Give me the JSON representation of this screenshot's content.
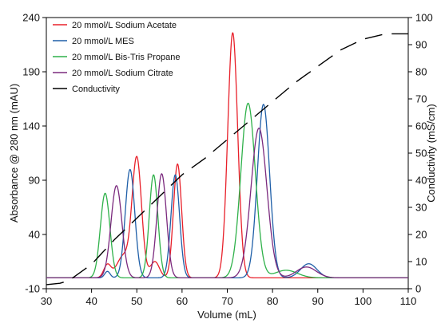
{
  "chart_data": {
    "type": "line",
    "xlabel": "Volume (mL)",
    "ylabel_left": "Absorbance @ 280 nm (mAU)",
    "ylabel_right": "Conductivity (mS/cm)",
    "xlim": [
      30,
      110
    ],
    "ylim_left": [
      -10,
      240
    ],
    "ylim_right": [
      0,
      100
    ],
    "x_ticks": [
      "30",
      "40",
      "50",
      "60",
      "70",
      "80",
      "90",
      "100",
      "110"
    ],
    "y_left_ticks": [
      "-10",
      "40",
      "90",
      "140",
      "190",
      "240"
    ],
    "y_right_ticks": [
      "0",
      "10",
      "20",
      "30",
      "40",
      "50",
      "60",
      "70",
      "80",
      "90",
      "100"
    ],
    "grid": false,
    "legend_position": "top-left",
    "series": [
      {
        "name": "20 mmol/L Sodium Acetate",
        "color": "#e8202a",
        "axis": "left",
        "baseline": 0,
        "peaks": [
          [
            43.5,
            12,
            0.8
          ],
          [
            47,
            20,
            1.4
          ],
          [
            50,
            110,
            1.05
          ],
          [
            54,
            15,
            1.0
          ],
          [
            59,
            105,
            0.9
          ],
          [
            71.2,
            226,
            1.1
          ]
        ]
      },
      {
        "name": "20 mmol/L MES",
        "color": "#1f5fa8",
        "axis": "left",
        "baseline": 0,
        "peaks": [
          [
            43.5,
            6,
            0.6
          ],
          [
            48.5,
            100,
            1.05
          ],
          [
            58.5,
            95,
            0.95
          ],
          [
            78,
            160,
            1.35
          ],
          [
            88,
            13,
            1.8
          ]
        ]
      },
      {
        "name": "20 mmol/L Bis-Tris Propane",
        "color": "#2fb14a",
        "axis": "left",
        "baseline": 0,
        "peaks": [
          [
            43,
            78,
            1.05
          ],
          [
            53.7,
            95,
            0.95
          ],
          [
            74.6,
            161,
            1.6
          ],
          [
            83,
            7,
            2.5
          ]
        ]
      },
      {
        "name": "20 mmol/L Sodium Citrate",
        "color": "#7b2a7e",
        "axis": "left",
        "baseline": 0,
        "peaks": [
          [
            45.5,
            85,
            1.2
          ],
          [
            55.5,
            96,
            1.05
          ],
          [
            77,
            138,
            1.75
          ],
          [
            87.5,
            10,
            2.2
          ]
        ]
      },
      {
        "name": "Conductivity",
        "color": "#000000",
        "axis": "right",
        "dashed": true,
        "x": [
          30,
          33,
          35,
          40,
          45,
          50,
          55,
          60,
          65,
          70,
          75,
          80,
          85,
          90,
          95,
          100,
          105,
          110
        ],
        "y": [
          1.5,
          2,
          3,
          9,
          18,
          26,
          34,
          42,
          48,
          55,
          62,
          69,
          76,
          82,
          88,
          92,
          94,
          94
        ]
      }
    ]
  }
}
